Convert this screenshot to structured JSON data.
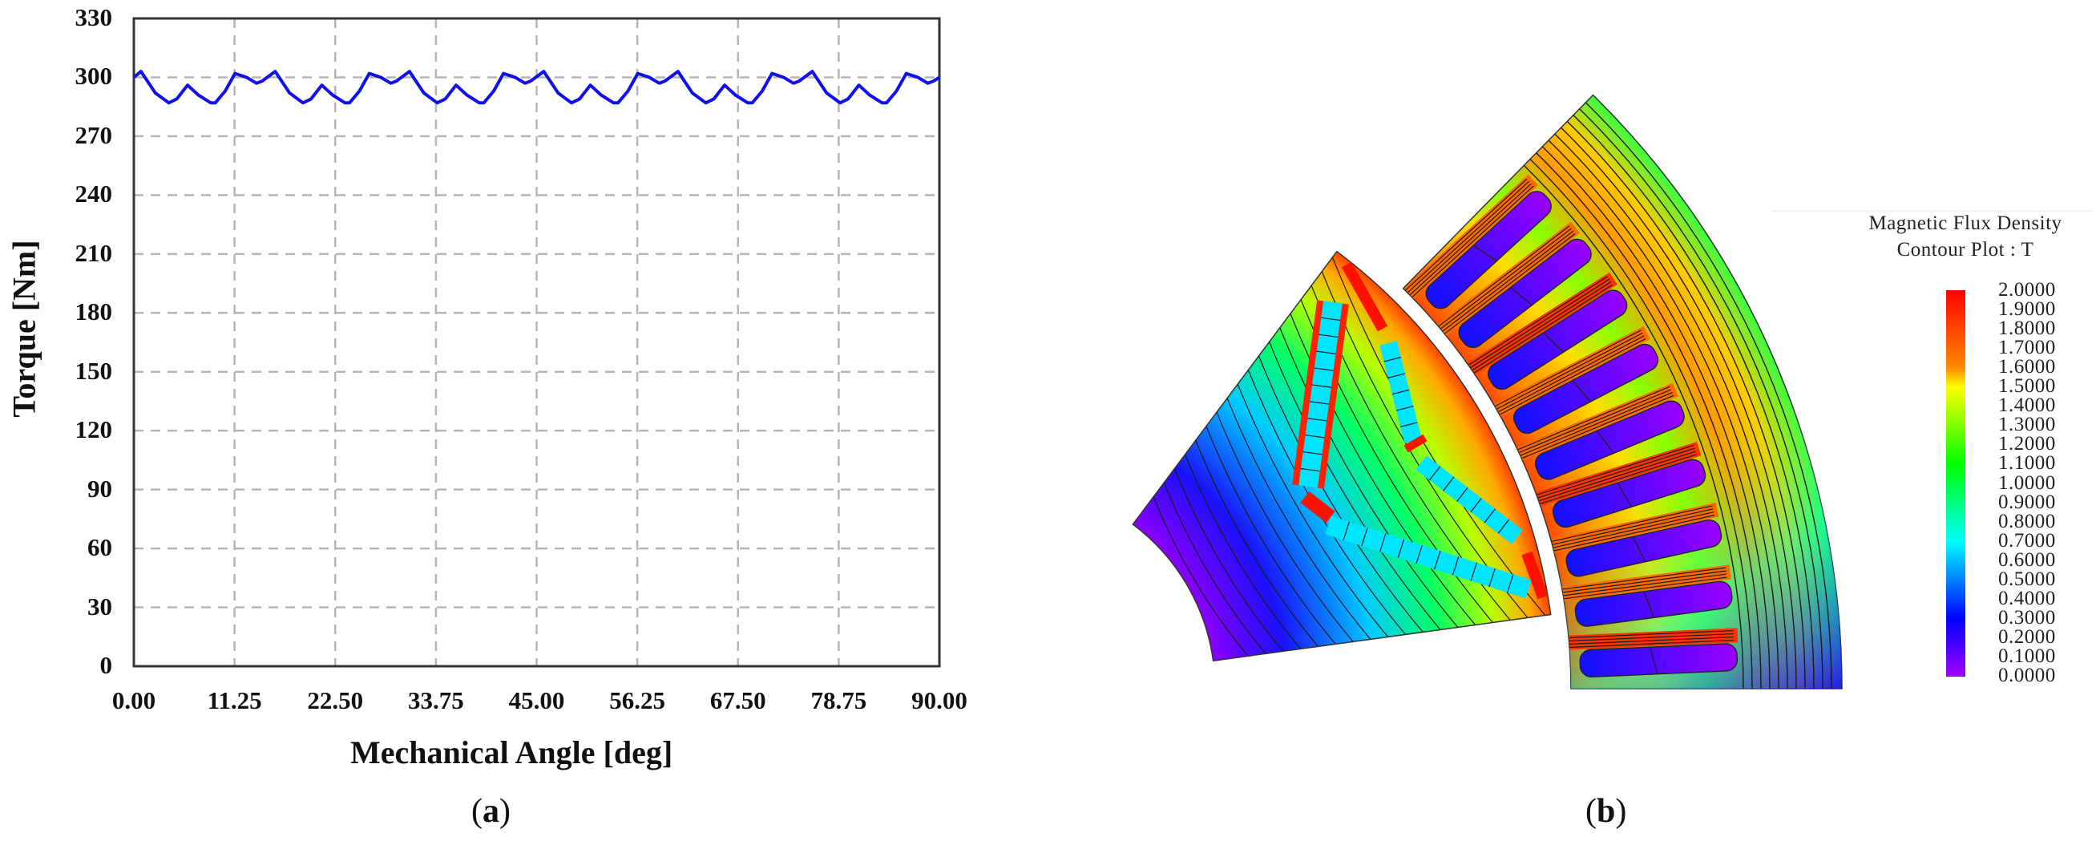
{
  "figure": {
    "panel_a": {
      "caption_open": "(",
      "caption_letter": "a",
      "caption_close": ")"
    },
    "panel_b": {
      "caption_open": "(",
      "caption_letter": "b",
      "caption_close": ")",
      "legend": {
        "title_line1": "Magnetic Flux Density",
        "title_line2": "Contour Plot : T",
        "labels": [
          "2.0000",
          "1.9000",
          "1.8000",
          "1.7000",
          "1.6000",
          "1.5000",
          "1.4000",
          "1.3000",
          "1.2000",
          "1.1000",
          "1.0000",
          "0.9000",
          "0.8000",
          "0.7000",
          "0.6000",
          "0.5000",
          "0.4000",
          "0.3000",
          "0.2000",
          "0.1000",
          "0.0000"
        ],
        "colors": [
          "#ff0000",
          "#ff7a00",
          "#ffff00",
          "#00ff00",
          "#00ffff",
          "#0000ff",
          "#9900ff"
        ]
      }
    }
  },
  "chart_data": [
    {
      "type": "line",
      "title": "",
      "xlabel": "Mechanical Angle [deg]",
      "ylabel": "Torque [Nm]",
      "xlim": [
        0,
        90
      ],
      "ylim": [
        0,
        330
      ],
      "grid": true,
      "legend": "none",
      "x_ticks": [
        "0.00",
        "11.25",
        "22.50",
        "33.75",
        "45.00",
        "56.25",
        "67.50",
        "78.75",
        "90.00"
      ],
      "y_ticks": [
        "0",
        "30",
        "60",
        "90",
        "120",
        "150",
        "180",
        "210",
        "240",
        "270",
        "300",
        "330"
      ],
      "series": [
        {
          "name": "Torque",
          "color": "#1010ee",
          "period_deg": 15,
          "x": [
            0,
            0.8,
            2.4,
            3.9,
            4.8,
            6.0,
            7.2,
            8.6,
            9.1,
            10.2,
            11.3,
            12.6,
            13.7,
            14.3,
            15.8,
            17.4,
            18.9,
            19.8,
            21.0,
            22.2,
            23.6,
            24.1,
            25.2,
            26.3,
            27.6,
            28.7,
            29.3,
            30.8,
            32.4,
            33.9,
            34.8,
            36.0,
            37.2,
            38.6,
            39.1,
            40.2,
            41.3,
            42.6,
            43.7,
            44.3,
            45.8,
            47.4,
            48.9,
            49.8,
            51.0,
            52.2,
            53.6,
            54.1,
            55.2,
            56.3,
            57.6,
            58.7,
            59.3,
            60.8,
            62.4,
            63.9,
            64.8,
            66.0,
            67.2,
            68.6,
            69.1,
            70.2,
            71.3,
            72.6,
            73.7,
            74.3,
            75.8,
            77.4,
            78.9,
            79.8,
            81.0,
            82.2,
            83.6,
            84.1,
            85.2,
            86.3,
            87.6,
            88.7,
            89.3,
            90.0
          ],
          "y": [
            300,
            303,
            292,
            287,
            289,
            296,
            291,
            287,
            287,
            293,
            302,
            300,
            297,
            298,
            303,
            292,
            287,
            289,
            296,
            291,
            287,
            287,
            293,
            302,
            300,
            297,
            298,
            303,
            292,
            287,
            289,
            296,
            291,
            287,
            287,
            293,
            302,
            300,
            297,
            298,
            303,
            292,
            287,
            289,
            296,
            291,
            287,
            287,
            293,
            302,
            300,
            297,
            298,
            303,
            292,
            287,
            289,
            296,
            291,
            287,
            287,
            293,
            302,
            300,
            297,
            298,
            303,
            292,
            287,
            289,
            296,
            291,
            287,
            287,
            293,
            302,
            300,
            297,
            298,
            300
          ]
        }
      ]
    },
    {
      "type": "heatmap",
      "title": "Magnetic Flux Density Contour Plot : T",
      "colorbar_range": [
        0.0,
        2.0
      ],
      "colorbar_step": 0.1,
      "description": "FEA flux density contour of a 1/8 machine section: V-shape IPM rotor segment and slotted stator segment with flux lines"
    }
  ]
}
